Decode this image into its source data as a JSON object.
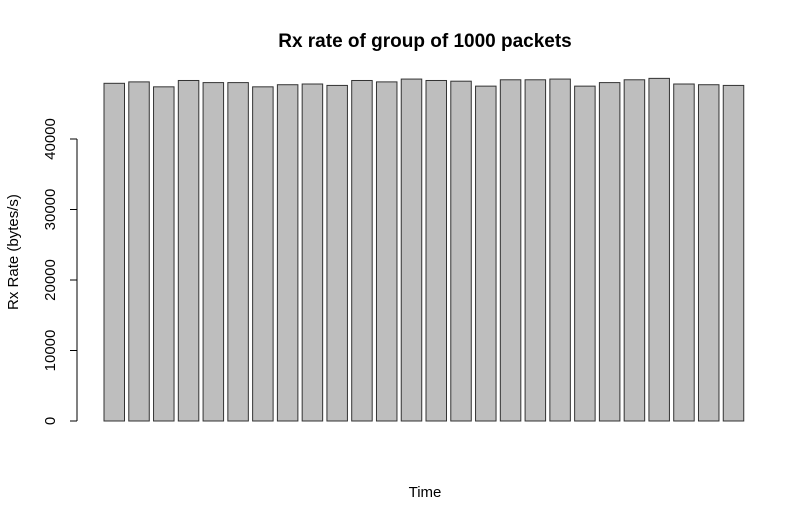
{
  "chart_data": {
    "type": "bar",
    "title": "Rx rate of group of 1000 packets",
    "xlabel": "Time",
    "ylabel": "Rx Rate (bytes/s)",
    "ylim": [
      0,
      50000
    ],
    "yticks": [
      0,
      10000,
      20000,
      30000,
      40000
    ],
    "ytick_labels": [
      "0",
      "10000",
      "20000",
      "30000",
      "40000"
    ],
    "grid": false,
    "legend": "none",
    "bar_color": "#bebebe",
    "values": [
      47900,
      48100,
      47400,
      48300,
      48000,
      48000,
      47400,
      47700,
      47800,
      47600,
      48300,
      48100,
      48500,
      48300,
      48200,
      47500,
      48400,
      48400,
      48500,
      47500,
      48000,
      48400,
      48600,
      47800,
      47700,
      47600
    ]
  }
}
